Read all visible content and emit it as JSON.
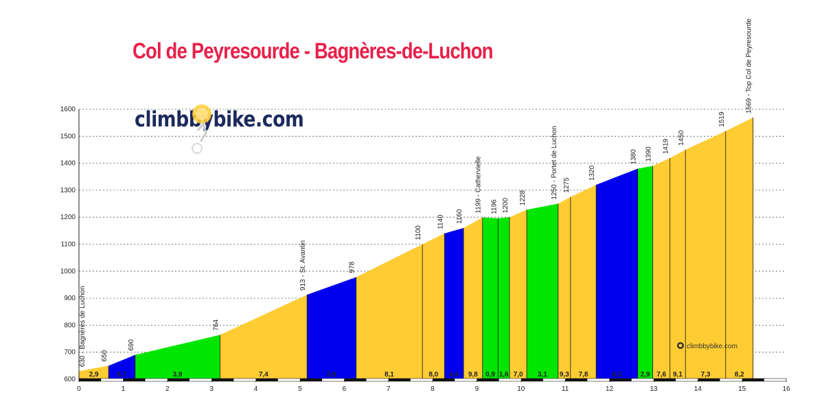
{
  "title": "Col de Peyresourde - Bagnères-de-Luchon",
  "watermark": "climbbybike.com",
  "small_watermark": "climbbybike.com",
  "colors": {
    "easy": "#00e600",
    "moderate": "#ffcc33",
    "hard": "#0000ee",
    "title": "#e8204a"
  },
  "chart_data": {
    "type": "area",
    "title": "Col de Peyresourde - Bagnères-de-Luchon",
    "xlabel": "",
    "ylabel": "",
    "xlim": [
      0,
      16
    ],
    "ylim": [
      600,
      1600
    ],
    "x_ticks": [
      0,
      1,
      2,
      3,
      4,
      5,
      6,
      7,
      8,
      9,
      10,
      11,
      12,
      13,
      14,
      15,
      16
    ],
    "y_ticks": [
      600,
      700,
      800,
      900,
      1000,
      1100,
      1200,
      1300,
      1400,
      1500,
      1600
    ],
    "grid": "horizontal dotted",
    "profile": [
      {
        "x": 0.0,
        "y": 630
      },
      {
        "x": 0.67,
        "y": 650
      },
      {
        "x": 1.27,
        "y": 690
      },
      {
        "x": 3.19,
        "y": 764
      },
      {
        "x": 5.16,
        "y": 913
      },
      {
        "x": 6.27,
        "y": 978
      },
      {
        "x": 7.77,
        "y": 1100
      },
      {
        "x": 8.27,
        "y": 1140
      },
      {
        "x": 8.7,
        "y": 1160
      },
      {
        "x": 9.13,
        "y": 1199
      },
      {
        "x": 9.48,
        "y": 1196
      },
      {
        "x": 9.74,
        "y": 1200
      },
      {
        "x": 10.13,
        "y": 1228
      },
      {
        "x": 10.84,
        "y": 1250
      },
      {
        "x": 11.12,
        "y": 1275
      },
      {
        "x": 11.7,
        "y": 1320
      },
      {
        "x": 12.64,
        "y": 1380
      },
      {
        "x": 12.98,
        "y": 1390
      },
      {
        "x": 13.37,
        "y": 1419
      },
      {
        "x": 13.72,
        "y": 1450
      },
      {
        "x": 14.63,
        "y": 1519
      },
      {
        "x": 15.25,
        "y": 1569
      }
    ],
    "segments": [
      {
        "grade": "2,9",
        "color": "moderate"
      },
      {
        "grade": "6,7",
        "color": "hard"
      },
      {
        "grade": "3,9",
        "color": "easy"
      },
      {
        "grade": "7,4",
        "color": "moderate"
      },
      {
        "grade": "5,9",
        "color": "hard"
      },
      {
        "grade": "8,1",
        "color": "moderate"
      },
      {
        "grade": "8,0",
        "color": "moderate"
      },
      {
        "grade": "4,4",
        "color": "hard"
      },
      {
        "grade": "9,8",
        "color": "moderate"
      },
      {
        "grade": "0,9",
        "color": "easy"
      },
      {
        "grade": "1,6",
        "color": "easy"
      },
      {
        "grade": "7,0",
        "color": "moderate"
      },
      {
        "grade": "3,1",
        "color": "easy"
      },
      {
        "grade": "9,3",
        "color": "moderate"
      },
      {
        "grade": "7,8",
        "color": "moderate"
      },
      {
        "grade": "6,3",
        "color": "hard"
      },
      {
        "grade": "2,9",
        "color": "easy"
      },
      {
        "grade": "7,6",
        "color": "moderate"
      },
      {
        "grade": "9,1",
        "color": "moderate"
      },
      {
        "grade": "7,3",
        "color": "moderate"
      },
      {
        "grade": "8,2",
        "color": "moderate"
      }
    ],
    "point_labels": [
      {
        "index": 0,
        "text": "630 - Bagnères de Luchon"
      },
      {
        "index": 1,
        "text": "650"
      },
      {
        "index": 2,
        "text": "690"
      },
      {
        "index": 3,
        "text": "764"
      },
      {
        "index": 4,
        "text": "913 - St. Avantin"
      },
      {
        "index": 5,
        "text": "978"
      },
      {
        "index": 6,
        "text": "1100"
      },
      {
        "index": 7,
        "text": "1140"
      },
      {
        "index": 8,
        "text": "1160"
      },
      {
        "index": 9,
        "text": "1199 - Cathervielle"
      },
      {
        "index": 10,
        "text": "1196"
      },
      {
        "index": 11,
        "text": "1200"
      },
      {
        "index": 12,
        "text": "1228"
      },
      {
        "index": 13,
        "text": "1250 - Portet de Luchon"
      },
      {
        "index": 14,
        "text": "1275"
      },
      {
        "index": 15,
        "text": "1320"
      },
      {
        "index": 16,
        "text": "1380"
      },
      {
        "index": 17,
        "text": "1390"
      },
      {
        "index": 18,
        "text": "1419"
      },
      {
        "index": 19,
        "text": "1450"
      },
      {
        "index": 20,
        "text": "1519"
      },
      {
        "index": 21,
        "text": "1569 - Top Col de Peyresourde"
      }
    ]
  }
}
